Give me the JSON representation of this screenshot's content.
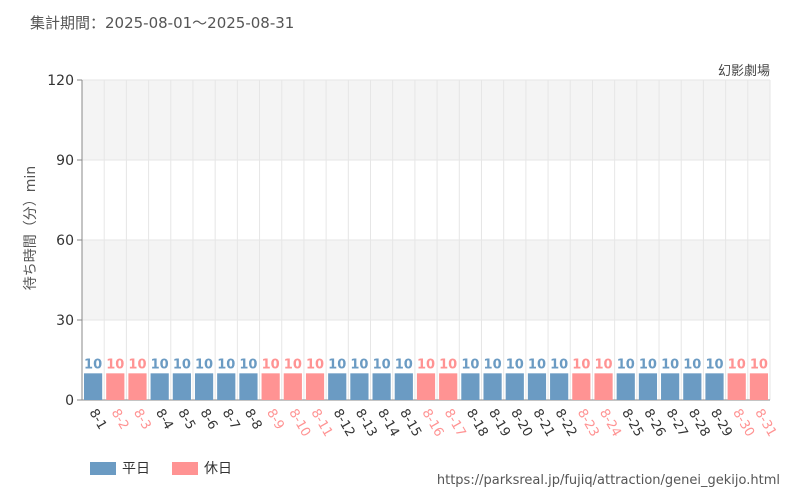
{
  "header": {
    "period": "集計期間：2025-08-01～2025-08-31",
    "attraction": "幻影劇場"
  },
  "legend": {
    "weekday_label": "平日",
    "holiday_label": "休日"
  },
  "source_url": "https://parksreal.jp/fujiq/attraction/genei_gekijo.html",
  "colors": {
    "weekday": "#6b9bc3",
    "holiday": "#ff9393",
    "grid": "#e6e6e6",
    "band": "#f4f4f4",
    "axis_text": "#333333"
  },
  "chart_data": {
    "type": "bar",
    "ylabel": "待ち時間（分）min",
    "ylim": [
      0,
      120
    ],
    "yticks": [
      0,
      30,
      60,
      90,
      120
    ],
    "grid": true,
    "legend_position": "bottom-left",
    "categories": [
      "8-1",
      "8-2",
      "8-3",
      "8-4",
      "8-5",
      "8-6",
      "8-7",
      "8-8",
      "8-9",
      "8-10",
      "8-11",
      "8-12",
      "8-13",
      "8-14",
      "8-15",
      "8-16",
      "8-17",
      "8-18",
      "8-19",
      "8-20",
      "8-21",
      "8-22",
      "8-23",
      "8-24",
      "8-25",
      "8-26",
      "8-27",
      "8-28",
      "8-29",
      "8-30",
      "8-31"
    ],
    "values": [
      10,
      10,
      10,
      10,
      10,
      10,
      10,
      10,
      10,
      10,
      10,
      10,
      10,
      10,
      10,
      10,
      10,
      10,
      10,
      10,
      10,
      10,
      10,
      10,
      10,
      10,
      10,
      10,
      10,
      10,
      10
    ],
    "day_type": [
      "weekday",
      "holiday",
      "holiday",
      "weekday",
      "weekday",
      "weekday",
      "weekday",
      "weekday",
      "holiday",
      "holiday",
      "holiday",
      "weekday",
      "weekday",
      "weekday",
      "weekday",
      "holiday",
      "holiday",
      "weekday",
      "weekday",
      "weekday",
      "weekday",
      "weekday",
      "holiday",
      "holiday",
      "weekday",
      "weekday",
      "weekday",
      "weekday",
      "weekday",
      "holiday",
      "holiday"
    ]
  }
}
